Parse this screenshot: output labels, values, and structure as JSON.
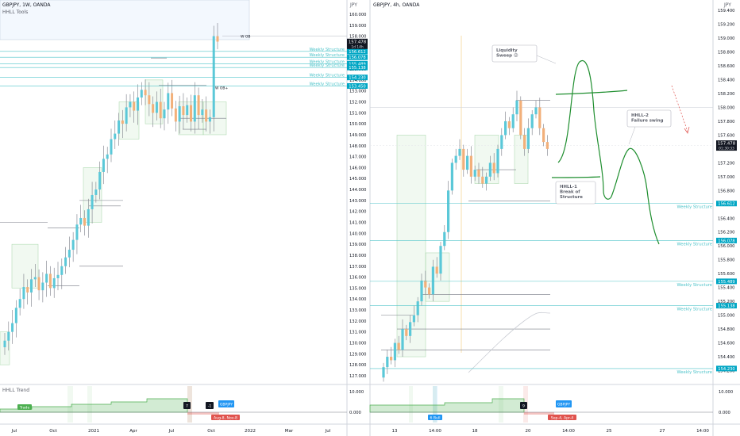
{
  "left": {
    "symbol": "GBPJPY, 1W, OANDA",
    "indicator": "HHLL Tools",
    "yticks": [
      "160.000",
      "159.000",
      "158.000",
      "157.000",
      "156.000",
      "155.000",
      "154.000",
      "153.000",
      "152.000",
      "151.000",
      "150.000",
      "149.000",
      "148.000",
      "147.000",
      "146.000",
      "145.000",
      "144.000",
      "143.000",
      "142.000",
      "141.000",
      "140.000",
      "139.000",
      "138.000",
      "137.000",
      "136.000",
      "135.000",
      "134.000",
      "133.000",
      "132.000",
      "131.000",
      "130.000",
      "129.000",
      "128.000",
      "127.000"
    ],
    "xticks": [
      "Jul",
      "Oct",
      "2021",
      "Apr",
      "Jul",
      "Oct",
      "2022",
      "Mar",
      "Jul"
    ],
    "price_label": "157.478",
    "price_countdown": "1d 14h",
    "structure_labels": [
      {
        "text": "Weekly Structure",
        "price": "156.612"
      },
      {
        "text": "Weekly Structure",
        "price": "156.078"
      },
      {
        "text": "Weekly Structure",
        "price": "155.489"
      },
      {
        "text": "Weekly Structure",
        "price": "155.138"
      },
      {
        "text": "Weekly Structure",
        "price": "154.230"
      },
      {
        "text": "Weekly Structure",
        "price": "153.450"
      }
    ],
    "marker_w_ob_top": "W OB",
    "marker_w_ob_mid": "W OB+",
    "sub_title": "HHLL Trend",
    "sub_yticks": [
      "10.000",
      "0.000"
    ],
    "sub_tags": {
      "trade": "Trade",
      "n7": "7",
      "n_1": "-1",
      "gbpjpy": "GBPJPY",
      "gbpjpy2": "4",
      "red": "Aug-8, Nov-8"
    }
  },
  "right": {
    "symbol": "GBPJPY, 4h, OANDA",
    "currency": "JPY",
    "yticks": [
      "159.400",
      "159.200",
      "159.000",
      "158.800",
      "158.600",
      "158.400",
      "158.200",
      "158.000",
      "157.800",
      "157.600",
      "157.400",
      "157.200",
      "157.000",
      "156.800",
      "156.600",
      "156.400",
      "156.200",
      "156.000",
      "155.800",
      "155.600",
      "155.400",
      "155.200",
      "155.000",
      "154.800",
      "154.600",
      "154.400",
      "154.200"
    ],
    "xticks": [
      "13",
      "14:00",
      "18",
      "20",
      "14:00",
      "25",
      "27",
      "14:00"
    ],
    "price_label": "157.478",
    "price_countdown": "01:30:33",
    "structure_labels": [
      {
        "text": "Weekly Structure",
        "price": "156.612"
      },
      {
        "text": "Weekly Structure",
        "price": "156.078"
      },
      {
        "text": "Weekly Structure",
        "price": "155.489"
      },
      {
        "text": "Weekly Structure",
        "price": "155.138"
      },
      {
        "text": "Weekly Structure",
        "price": "154.230"
      }
    ],
    "annotations": {
      "liquidity": "Liquidity Sweep 😜",
      "hhll1": "HHLL-1 Break of Structure",
      "hhll2": "HHLL-2 Failure swing"
    },
    "sub_yticks": [
      "10.000",
      "0.000"
    ],
    "sub_tags": {
      "trade": "6 Bull",
      "n9": "9",
      "gbpjpy": "GBPJPY",
      "gbpjpy2": "4",
      "red": "Sep-4, Apr-4"
    }
  },
  "colors": {
    "bull": "#5bc8d8",
    "bear": "#f2b07a",
    "structure": "#4dc3c9",
    "drawing": "#1e8e2e",
    "price_tag": "#131722",
    "sub_green": "#4caf50",
    "sub_red": "#e0534e",
    "sub_blue": "#2196f3"
  },
  "chart_data": [
    {
      "type": "candlestick",
      "title": "GBPJPY, 1W, OANDA",
      "ylim": [
        127.0,
        160.5
      ],
      "series": [
        {
          "name": "weekly",
          "ohlc_close": [
            130.2,
            131.0,
            131.8,
            133.2,
            134.0,
            135.1,
            134.6,
            135.8,
            136.0,
            134.8,
            135.5,
            136.3,
            135.0,
            135.9,
            136.2,
            137.0,
            137.8,
            138.5,
            139.4,
            140.8,
            141.4,
            140.7,
            142.2,
            143.5,
            144.0,
            145.6,
            146.8,
            147.2,
            148.6,
            149.1,
            150.3,
            150.0,
            151.5,
            152.0,
            151.2,
            152.4,
            153.1,
            152.6,
            151.8,
            151.0,
            152.0,
            150.5,
            151.3,
            152.8,
            151.4,
            150.2,
            151.6,
            150.8,
            151.7,
            150.2,
            152.6,
            150.8,
            151.3,
            150.2,
            150.6,
            158.0,
            157.5
          ]
        }
      ]
    },
    {
      "type": "candlestick",
      "title": "GBPJPY, 4h, OANDA",
      "ylim": [
        154.0,
        159.5
      ],
      "series": [
        {
          "name": "4h",
          "ohlc_close": [
            154.25,
            154.4,
            154.35,
            154.6,
            154.5,
            154.8,
            154.7,
            154.9,
            155.0,
            155.2,
            155.5,
            155.4,
            155.3,
            155.7,
            155.6,
            156.0,
            156.2,
            156.8,
            157.2,
            157.3,
            157.4,
            157.1,
            157.3,
            157.0,
            157.1,
            157.0,
            156.9,
            157.0,
            157.2,
            157.05,
            157.4,
            157.6,
            157.8,
            157.7,
            157.9,
            158.1,
            157.6,
            157.4,
            157.7,
            157.9,
            158.0,
            157.7,
            157.5,
            157.4
          ]
        }
      ]
    }
  ]
}
